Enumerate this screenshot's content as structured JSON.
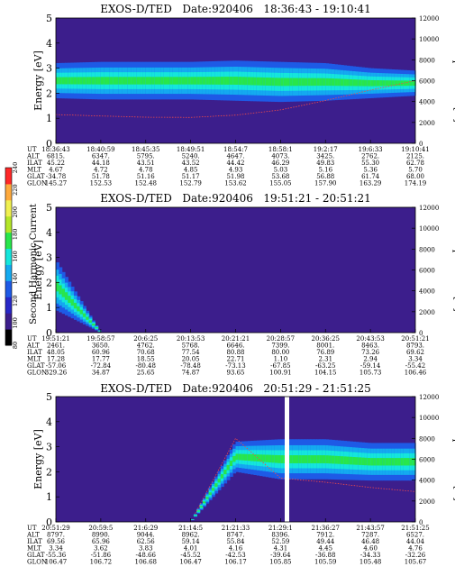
{
  "colors": {
    "background": "#3c1e8c",
    "colormap": [
      "#000000",
      "#3c1e8c",
      "#2828c8",
      "#1e5ae6",
      "#14aaf0",
      "#14e6dc",
      "#28e64b",
      "#b4e628",
      "#f0f050",
      "#ffaa3c",
      "#ff2828"
    ],
    "temperature_trace": "#f04a4a",
    "marker": "#ffffff"
  },
  "colorbar": {
    "label": "Second Harmonic Current",
    "ticks": [
      "80",
      "100",
      "120",
      "140",
      "160",
      "180",
      "200",
      "220",
      "240"
    ]
  },
  "chart_data": [
    {
      "type": "heatmap",
      "title": "EXOS-D/TED   Date:920406   18:36:43 - 19:10:41",
      "ylabel": "Energy [eV]",
      "y2label": "Temperature [K]",
      "ylim": [
        0,
        5
      ],
      "y_ticks": [
        "0",
        "1",
        "2",
        "3",
        "4",
        "5"
      ],
      "y2lim": [
        0,
        12000
      ],
      "y2_ticks": [
        "0",
        "2000",
        "4000",
        "6000",
        "8000",
        "10000",
        "12000"
      ],
      "ephemeris_labels": [
        "UT",
        "ALT",
        "ILAT",
        "MLT",
        "GLAT",
        "GLON"
      ],
      "columns": [
        [
          "18:36:43",
          "6815.",
          "45.22",
          "4.67",
          "-34.78",
          "145.27"
        ],
        [
          "18:40:59",
          "6347.",
          "44.18",
          "4.72",
          "51.78",
          "152.53"
        ],
        [
          "18:45:35",
          "5795.",
          "43.51",
          "4.78",
          "51.16",
          "152.48"
        ],
        [
          "18:49:51",
          "5240.",
          "43.52",
          "4.85",
          "51.17",
          "152.79"
        ],
        [
          "18:54:7",
          "4647.",
          "44.42",
          "4.93",
          "51.98",
          "153.62"
        ],
        [
          "18:58:1",
          "4073.",
          "46.29",
          "5.03",
          "53.68",
          "155.05"
        ],
        [
          "19:2:17",
          "3425.",
          "49.83",
          "5.16",
          "56.88",
          "157.90"
        ],
        [
          "19:6:33",
          "2762.",
          "55.30",
          "5.36",
          "61.74",
          "163.29"
        ],
        [
          "19:10:41",
          "2125.",
          "62.78",
          "5.70",
          "68.00",
          "174.19"
        ]
      ],
      "band": {
        "center_ev": [
          2.5,
          2.5,
          2.5,
          2.5,
          2.5,
          2.45,
          2.45,
          2.4,
          2.4
        ],
        "width_ev": [
          0.7,
          0.75,
          0.75,
          0.75,
          0.8,
          0.8,
          0.75,
          0.6,
          0.5
        ]
      },
      "temperature_k": [
        2750,
        2620,
        2500,
        2480,
        2700,
        3200,
        4100,
        5100,
        6000
      ]
    },
    {
      "type": "heatmap",
      "title": "EXOS-D/TED   Date:920406   19:51:21 - 20:51:21",
      "ylabel": "Energy [eV]",
      "y2label": "Temperature [K]",
      "ylim": [
        0,
        5
      ],
      "y_ticks": [
        "0",
        "1",
        "2",
        "3",
        "4",
        "5"
      ],
      "y2lim": [
        0,
        12000
      ],
      "y2_ticks": [
        "0",
        "2000",
        "4000",
        "6000",
        "8000",
        "10000",
        "12000"
      ],
      "ephemeris_labels": [
        "UT",
        "ALT",
        "ILAT",
        "MLT",
        "GLAT",
        "GLON"
      ],
      "columns": [
        [
          "19:51:21",
          "2461.",
          "48.05",
          "17.28",
          "-57.06",
          "329.26"
        ],
        [
          "19:58:57",
          "3650.",
          "60.96",
          "17.77",
          "-72.84",
          "34.87"
        ],
        [
          "20:6:25",
          "4762.",
          "70.68",
          "18.55",
          "-80.48",
          "25.65"
        ],
        [
          "20:13:53",
          "5768.",
          "77.54",
          "20.05",
          "-78.48",
          "74.87"
        ],
        [
          "20:21:21",
          "6646.",
          "80.88",
          "22.71",
          "-73.13",
          "93.65"
        ],
        [
          "20:28:57",
          "7399.",
          "80.00",
          "1.10",
          "-67.85",
          "100.91"
        ],
        [
          "20:36:25",
          "8001.",
          "76.89",
          "2.31",
          "-63.25",
          "104.15"
        ],
        [
          "20:43:53",
          "8463.",
          "73.26",
          "2.94",
          "-59.14",
          "105.73"
        ],
        [
          "20:51:21",
          "8793.",
          "69.62",
          "3.34",
          "-55.42",
          "106.46"
        ]
      ],
      "band": {
        "center_ev": [
          1.9,
          0,
          0,
          0,
          0,
          0,
          0,
          0,
          0
        ],
        "width_ev": [
          1.0,
          0,
          0,
          0,
          0,
          0,
          0,
          0,
          0
        ]
      },
      "temperature_k": []
    },
    {
      "type": "heatmap",
      "title": "EXOS-D/TED   Date:920406   20:51:29 - 21:51:25",
      "ylabel": "Energy [eV]",
      "y2label": "Temperature [K]",
      "ylim": [
        0,
        5
      ],
      "y_ticks": [
        "0",
        "1",
        "2",
        "3",
        "4",
        "5"
      ],
      "y2lim": [
        0,
        12000
      ],
      "y2_ticks": [
        "0",
        "2000",
        "4000",
        "6000",
        "8000",
        "10000",
        "12000"
      ],
      "ephemeris_labels": [
        "UT",
        "ALT",
        "ILAT",
        "MLT",
        "GLAT",
        "GLON"
      ],
      "columns": [
        [
          "20:51:29",
          "8797.",
          "69.56",
          "3.34",
          "-55.36",
          "106.47"
        ],
        [
          "20:59:5",
          "8990.",
          "65.96",
          "3.62",
          "-51.86",
          "106.72"
        ],
        [
          "21:6:29",
          "9044.",
          "62.56",
          "3.83",
          "-48.66",
          "106.68"
        ],
        [
          "21:14:5",
          "8962.",
          "59.14",
          "4.01",
          "-45.52",
          "106.47"
        ],
        [
          "21:21:33",
          "8747.",
          "55.84",
          "4.16",
          "-42.53",
          "106.17"
        ],
        [
          "21:29:1",
          "8396.",
          "52.59",
          "4.31",
          "-39.64",
          "105.85"
        ],
        [
          "21:36:27",
          "7912.",
          "49.44",
          "4.45",
          "-36.88",
          "105.59"
        ],
        [
          "21:43:57",
          "7287.",
          "46.48",
          "4.60",
          "-34.33",
          "105.48"
        ],
        [
          "21:51:25",
          "6527.",
          "44.04",
          "4.76",
          "-32.26",
          "105.67"
        ]
      ],
      "band": {
        "center_ev": [
          0,
          0,
          0,
          0,
          2.6,
          2.5,
          2.5,
          2.4,
          2.4
        ],
        "width_ev": [
          0,
          0,
          0,
          0,
          0.6,
          0.8,
          0.8,
          0.75,
          0.75
        ]
      },
      "temperature_k": [
        0,
        0,
        0,
        0,
        8000,
        4200,
        3800,
        3300,
        2900
      ]
    }
  ]
}
